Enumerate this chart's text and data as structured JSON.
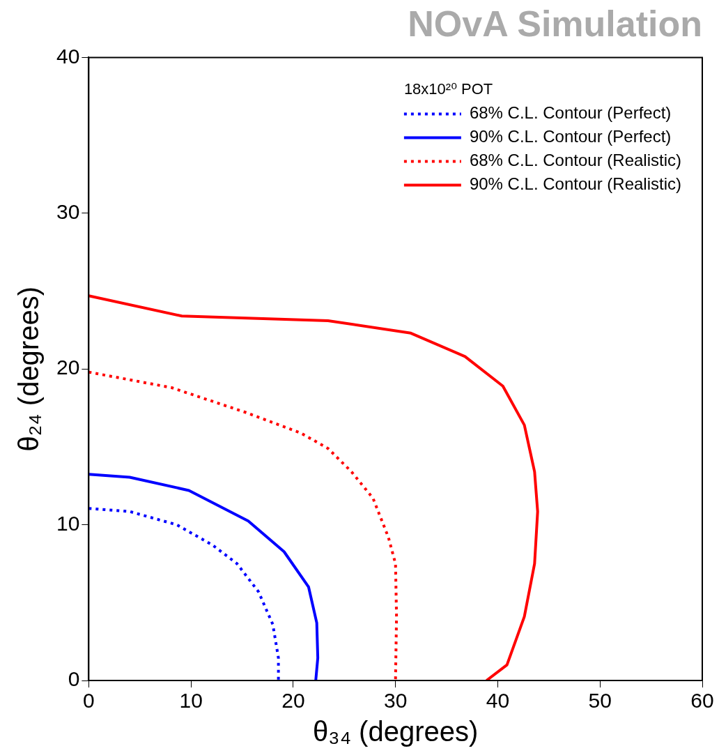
{
  "chart_data": {
    "type": "line",
    "title": "NOvA Simulation",
    "xlabel": "θ₃₄ (degrees)",
    "ylabel": "θ₂₄ (degrees)",
    "legend_title": "18x10²⁰ POT",
    "legend": "top right",
    "grid": false,
    "marker": "none",
    "xlim": [
      0,
      60
    ],
    "xticks": [
      0,
      10,
      20,
      30,
      40,
      50,
      60
    ],
    "ylim": [
      0,
      40
    ],
    "yticks": [
      0,
      10,
      20,
      30,
      40
    ],
    "series": [
      {
        "name": "68% C.L. Contour (Perfect)",
        "color": "#0000ff",
        "line_style": "dotted",
        "x": [
          0,
          4,
          8.6,
          12.1,
          14.5,
          16.6,
          18,
          18.55,
          18.55
        ],
        "values": [
          11.05,
          10.85,
          10,
          8.7,
          7.5,
          5.7,
          3.6,
          1.45,
          0
        ]
      },
      {
        "name": "90% C.L. Contour (Perfect)",
        "color": "#0000ff",
        "line_style": "solid",
        "x": [
          0,
          4,
          9.8,
          15.6,
          19.1,
          21.5,
          22.3,
          22.4,
          22.2
        ],
        "values": [
          13.24,
          13.05,
          12.2,
          10.24,
          8.27,
          6,
          3.7,
          1.45,
          0
        ]
      },
      {
        "name": "68% C.L. Contour (Realistic)",
        "color": "#ff0000",
        "line_style": "dotted",
        "x": [
          0,
          8.1,
          15.4,
          20.7,
          23.4,
          25.7,
          27.8,
          29.3,
          30,
          30.1,
          30
        ],
        "values": [
          19.8,
          18.8,
          17.2,
          15.9,
          14.9,
          13.4,
          11.7,
          9.2,
          7.5,
          4.1,
          0
        ]
      },
      {
        "name": "90% C.L. Contour (Realistic)",
        "color": "#ff0000",
        "line_style": "solid",
        "x": [
          0,
          9.1,
          23.4,
          31.5,
          36.8,
          40.5,
          42.6,
          43.6,
          43.9,
          43.6,
          42.6,
          40.9,
          38.9
        ],
        "values": [
          24.7,
          23.4,
          23.1,
          22.3,
          20.8,
          18.9,
          16.4,
          13.4,
          10.85,
          7.5,
          4.1,
          1,
          0
        ]
      }
    ]
  }
}
